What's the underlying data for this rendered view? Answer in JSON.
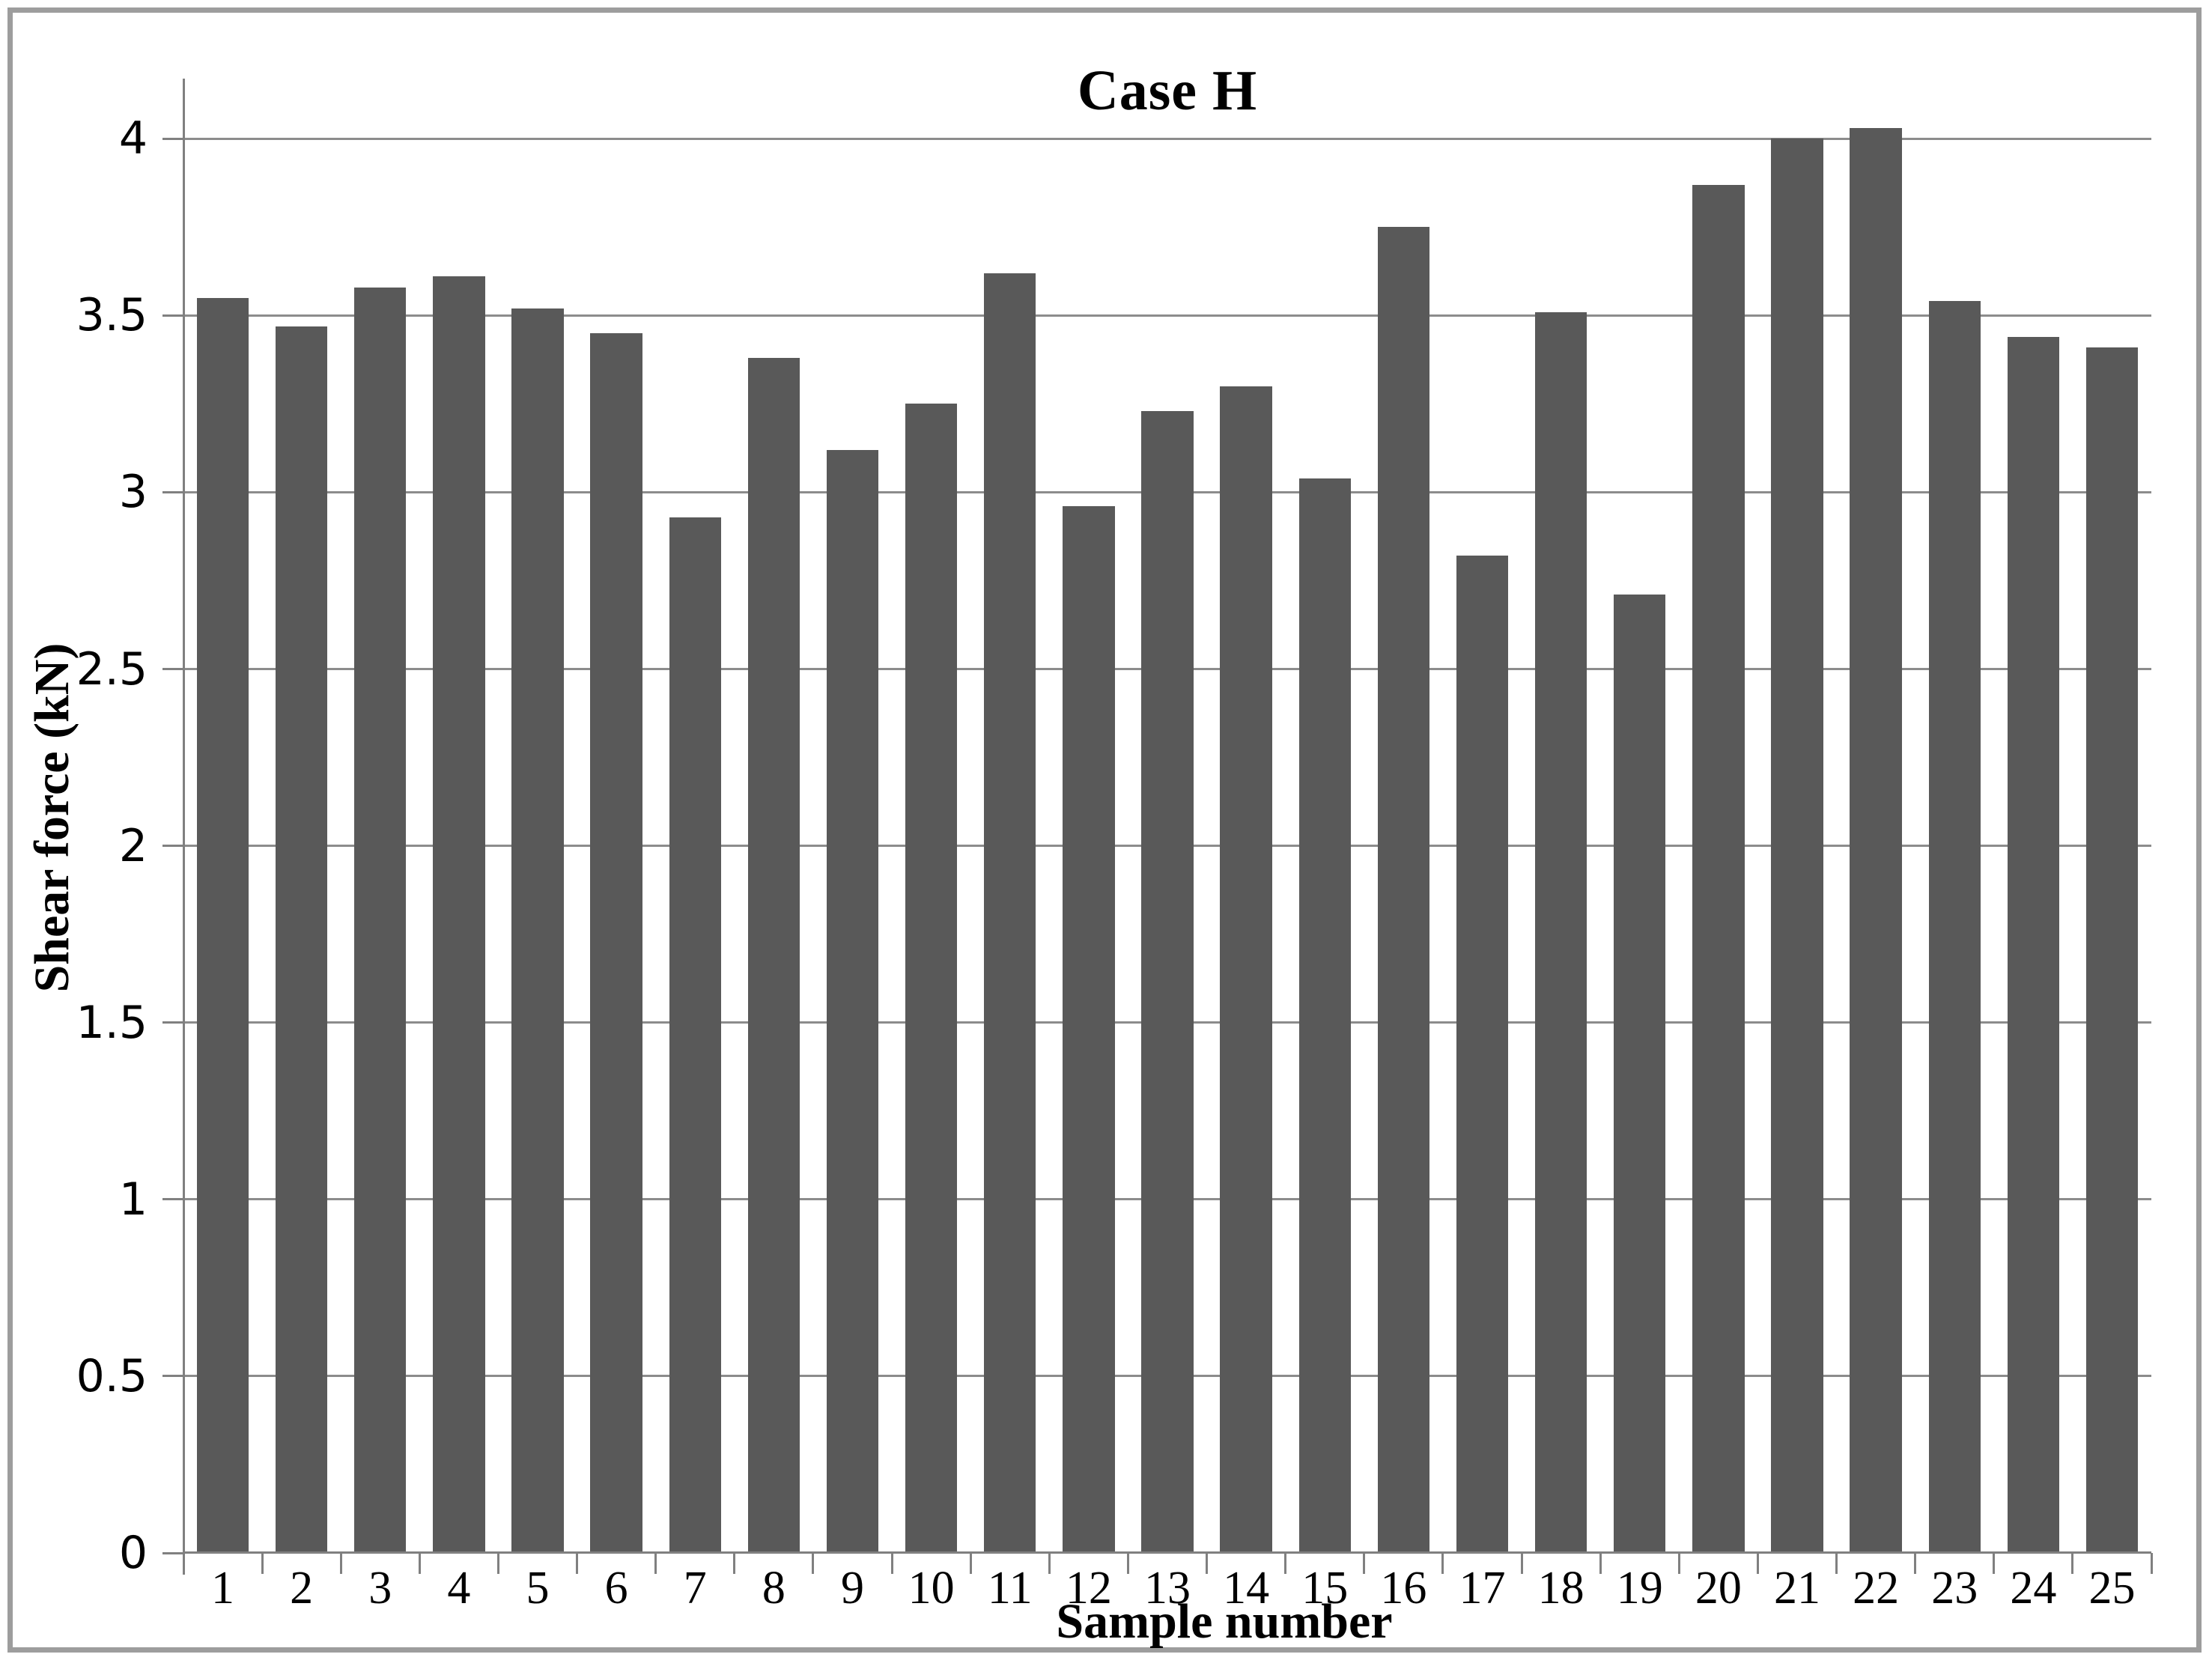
{
  "chart_data": {
    "type": "bar",
    "title": "Case H",
    "xlabel": "Sample number",
    "ylabel": "Shear force (kN)",
    "categories": [
      "1",
      "2",
      "3",
      "4",
      "5",
      "6",
      "7",
      "8",
      "9",
      "10",
      "11",
      "12",
      "13",
      "14",
      "15",
      "16",
      "17",
      "18",
      "19",
      "20",
      "21",
      "22",
      "23",
      "24",
      "25"
    ],
    "values": [
      3.55,
      3.47,
      3.58,
      3.61,
      3.52,
      3.45,
      2.93,
      3.38,
      3.12,
      3.25,
      3.62,
      2.96,
      3.23,
      3.3,
      3.04,
      3.75,
      2.82,
      3.51,
      2.71,
      3.87,
      4.0,
      4.03,
      3.54,
      3.44,
      3.41
    ],
    "ylim": [
      0,
      4
    ],
    "y_visual_max": 4.17,
    "ytick_step": 0.5,
    "yticks": [
      "0",
      "0.5",
      "1",
      "1.5",
      "2",
      "2.5",
      "3",
      "3.5",
      "4"
    ],
    "grid": true,
    "legend": "none",
    "bar_color": "#595959",
    "gridline_color": "#8c8c8c",
    "axis_color": "#808080",
    "text_color": "#000000",
    "frame_color": "#9d9d9d",
    "bar_width_fraction": 0.66
  }
}
